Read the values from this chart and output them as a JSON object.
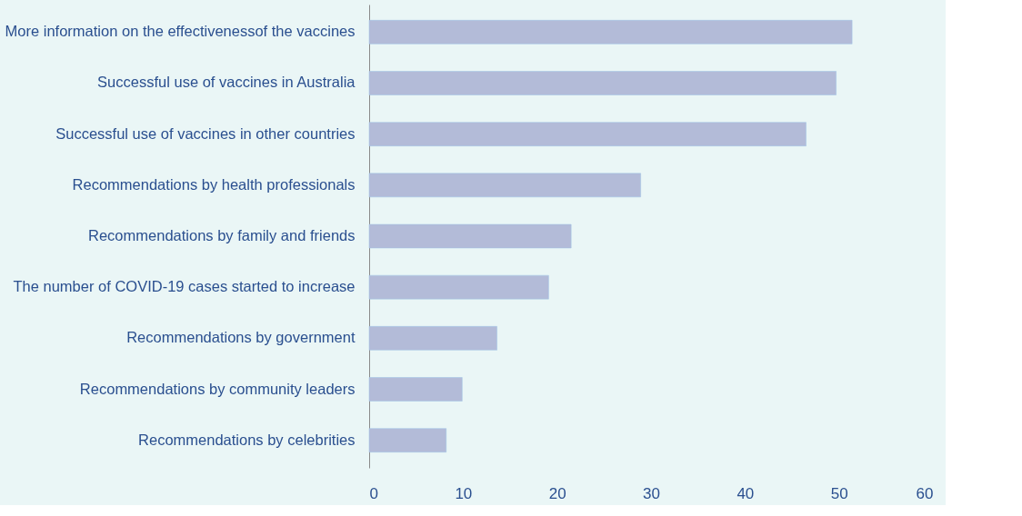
{
  "chart_data": {
    "type": "bar",
    "orientation": "horizontal",
    "categories": [
      "More information on the effectivenessof the vaccines",
      "Successful use of vaccines in Australia",
      "Successful use of vaccines in other countries",
      "Recommendations by health professionals",
      "Recommendations by family and friends",
      "The number of COVID-19 cases started to increase",
      "Recommendations by government",
      "Recommendations by community leaders",
      "Recommendations by celebrities"
    ],
    "values": [
      51.4,
      49.7,
      46.5,
      28.9,
      21.5,
      19.1,
      13.6,
      9.9,
      8.2
    ],
    "color": "#b3bbd8",
    "xlim": [
      0,
      60
    ],
    "xticks": [
      0,
      10,
      20,
      30,
      40,
      50,
      60
    ],
    "grid": false
  }
}
